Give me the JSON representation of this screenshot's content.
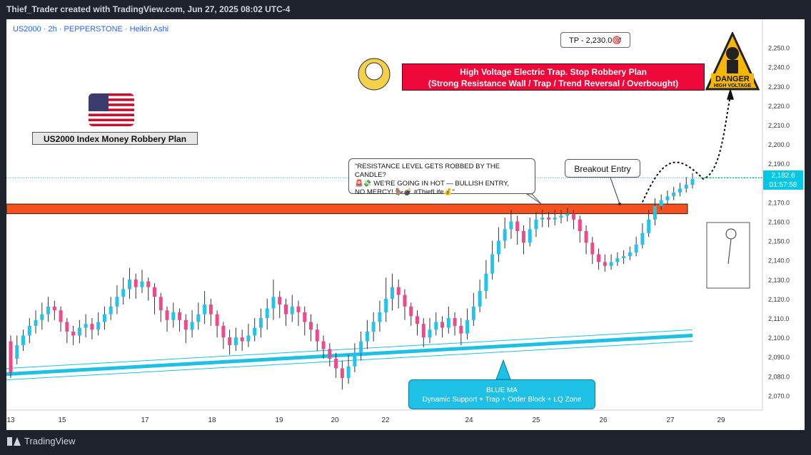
{
  "header": {
    "text": "Thief_Trader created with TradingView.com, Jun 27, 2025 08:02 UTC-4"
  },
  "symbol_line": "US2000 · 2h · PEPPERSTONE · Heikin Ashi",
  "footer": {
    "brand": "TradingView"
  },
  "annotations": {
    "red_title_1": "High Voltage Electric Trap. Stop Robbery Plan",
    "red_title_2": "(Strong Resistance Wall / Trap / Trend Reversal / Overbought)",
    "tp": "TP - 2,230.0🎯",
    "flag_title": "US2000 Index Money Robbery Plan",
    "breakout": "Breakout Entry",
    "quote_1": "\"RESISTANCE LEVEL GETS ROBBED BY THE CANDLE?",
    "quote_2": "🚨💸 WE'RE GOING IN HOT — BULLISH ENTRY,",
    "quote_3": "NO MERCY! 🦫💣 #ThiefLife💰\"",
    "blue_1": "BLUE MA",
    "blue_2": "Dynamic Support + Trap + Order Block + LQ Zone",
    "danger_1": "DANGER",
    "danger_2": "HIGH VOLTAGE"
  },
  "price_tag": {
    "price": "2,182.6",
    "time": "01:57:58"
  },
  "colors": {
    "up": "#22c4ee",
    "down": "#f0488c",
    "resistance": "#f4511e",
    "ma": "#1ec0e6",
    "redbox": "#f0083a"
  },
  "chart_data": {
    "type": "candlestick",
    "title": "US2000 · 2h · PEPPERSTONE · Heikin Ashi",
    "ylim": [
      2065,
      2255
    ],
    "y_ticks": [
      "2,250.0",
      "2,240.0",
      "2,230.0",
      "2,220.0",
      "2,210.0",
      "2,200.0",
      "2,190.0",
      "2,180.0",
      "2,170.0",
      "2,160.0",
      "2,150.0",
      "2,140.0",
      "2,130.0",
      "2,120.0",
      "2,110.0",
      "2,100.0",
      "2,090.0",
      "2,080.0",
      "2,070.0"
    ],
    "x_ticks": [
      "13",
      "15",
      "17",
      "18",
      "19",
      "20",
      "22",
      "24",
      "25",
      "26",
      "27",
      "29"
    ],
    "resistance_zone": [
      2164,
      2169
    ],
    "current_price": 2182.6,
    "target": 2230.0,
    "blue_ma": {
      "start": 2081,
      "end": 2101
    },
    "candles": [
      [
        2098,
        2082,
        2101,
        2079
      ],
      [
        2089,
        2096,
        2101,
        2086
      ],
      [
        2096,
        2101,
        2104,
        2093
      ],
      [
        2101,
        2106,
        2110,
        2097
      ],
      [
        2106,
        2109,
        2114,
        2102
      ],
      [
        2109,
        2112,
        2118,
        2104
      ],
      [
        2112,
        2116,
        2121,
        2108
      ],
      [
        2116,
        2114,
        2119,
        2109
      ],
      [
        2114,
        2108,
        2116,
        2103
      ],
      [
        2108,
        2103,
        2110,
        2097
      ],
      [
        2103,
        2101,
        2106,
        2096
      ],
      [
        2101,
        2105,
        2109,
        2097
      ],
      [
        2105,
        2107,
        2112,
        2100
      ],
      [
        2107,
        2104,
        2110,
        2099
      ],
      [
        2104,
        2108,
        2113,
        2101
      ],
      [
        2108,
        2112,
        2116,
        2104
      ],
      [
        2112,
        2116,
        2121,
        2109
      ],
      [
        2116,
        2121,
        2127,
        2112
      ],
      [
        2121,
        2125,
        2131,
        2117
      ],
      [
        2125,
        2130,
        2136,
        2120
      ],
      [
        2130,
        2126,
        2133,
        2120
      ],
      [
        2126,
        2129,
        2135,
        2123
      ],
      [
        2129,
        2126,
        2131,
        2119
      ],
      [
        2126,
        2121,
        2128,
        2112
      ],
      [
        2121,
        2114,
        2123,
        2108
      ],
      [
        2114,
        2109,
        2116,
        2103
      ],
      [
        2109,
        2113,
        2118,
        2105
      ],
      [
        2113,
        2109,
        2115,
        2103
      ],
      [
        2109,
        2104,
        2112,
        2097
      ],
      [
        2104,
        2108,
        2114,
        2100
      ],
      [
        2108,
        2112,
        2118,
        2104
      ],
      [
        2112,
        2117,
        2124,
        2107
      ],
      [
        2117,
        2112,
        2120,
        2106
      ],
      [
        2112,
        2106,
        2114,
        2100
      ],
      [
        2106,
        2100,
        2108,
        2094
      ],
      [
        2100,
        2096,
        2104,
        2091
      ],
      [
        2096,
        2100,
        2105,
        2093
      ],
      [
        2100,
        2098,
        2104,
        2093
      ],
      [
        2098,
        2101,
        2107,
        2095
      ],
      [
        2101,
        2105,
        2110,
        2098
      ],
      [
        2105,
        2110,
        2115,
        2100
      ],
      [
        2110,
        2115,
        2120,
        2104
      ],
      [
        2115,
        2121,
        2130,
        2109
      ],
      [
        2121,
        2117,
        2124,
        2110
      ],
      [
        2117,
        2112,
        2120,
        2106
      ],
      [
        2112,
        2116,
        2122,
        2108
      ],
      [
        2116,
        2113,
        2119,
        2106
      ],
      [
        2113,
        2108,
        2116,
        2101
      ],
      [
        2108,
        2104,
        2112,
        2098
      ],
      [
        2104,
        2098,
        2107,
        2093
      ],
      [
        2098,
        2094,
        2101,
        2089
      ],
      [
        2094,
        2089,
        2097,
        2085
      ],
      [
        2089,
        2084,
        2092,
        2079
      ],
      [
        2084,
        2079,
        2088,
        2073
      ],
      [
        2079,
        2085,
        2091,
        2076
      ],
      [
        2085,
        2092,
        2097,
        2082
      ],
      [
        2092,
        2098,
        2103,
        2088
      ],
      [
        2098,
        2103,
        2109,
        2094
      ],
      [
        2103,
        2108,
        2113,
        2098
      ],
      [
        2108,
        2113,
        2119,
        2103
      ],
      [
        2113,
        2120,
        2131,
        2108
      ],
      [
        2120,
        2126,
        2133,
        2114
      ],
      [
        2126,
        2122,
        2130,
        2115
      ],
      [
        2122,
        2116,
        2125,
        2109
      ],
      [
        2116,
        2111,
        2118,
        2106
      ],
      [
        2111,
        2107,
        2114,
        2101
      ],
      [
        2107,
        2100,
        2110,
        2095
      ],
      [
        2100,
        2104,
        2110,
        2097
      ],
      [
        2104,
        2108,
        2113,
        2101
      ],
      [
        2108,
        2105,
        2111,
        2100
      ],
      [
        2105,
        2110,
        2116,
        2102
      ],
      [
        2110,
        2106,
        2113,
        2101
      ],
      [
        2106,
        2102,
        2110,
        2096
      ],
      [
        2102,
        2109,
        2115,
        2099
      ],
      [
        2109,
        2116,
        2123,
        2106
      ],
      [
        2116,
        2124,
        2130,
        2113
      ],
      [
        2124,
        2133,
        2140,
        2120
      ],
      [
        2133,
        2143,
        2150,
        2130
      ],
      [
        2143,
        2150,
        2157,
        2139
      ],
      [
        2150,
        2156,
        2162,
        2146
      ],
      [
        2156,
        2160,
        2166,
        2151
      ],
      [
        2160,
        2155,
        2163,
        2148
      ],
      [
        2155,
        2149,
        2158,
        2143
      ],
      [
        2149,
        2156,
        2162,
        2147
      ],
      [
        2156,
        2161,
        2165,
        2152
      ],
      [
        2161,
        2162,
        2166,
        2157
      ],
      [
        2162,
        2161,
        2165,
        2157
      ],
      [
        2161,
        2162,
        2166,
        2158
      ],
      [
        2162,
        2163,
        2166,
        2159
      ],
      [
        2163,
        2164,
        2167,
        2160
      ],
      [
        2164,
        2161,
        2166,
        2156
      ],
      [
        2161,
        2155,
        2163,
        2149
      ],
      [
        2155,
        2149,
        2158,
        2143
      ],
      [
        2149,
        2143,
        2152,
        2138
      ],
      [
        2143,
        2139,
        2146,
        2135
      ],
      [
        2139,
        2137,
        2143,
        2134
      ],
      [
        2137,
        2139,
        2143,
        2135
      ],
      [
        2139,
        2141,
        2144,
        2137
      ],
      [
        2141,
        2142,
        2145,
        2138
      ],
      [
        2142,
        2144,
        2147,
        2140
      ],
      [
        2144,
        2148,
        2152,
        2142
      ],
      [
        2148,
        2154,
        2159,
        2146
      ],
      [
        2154,
        2161,
        2166,
        2152
      ],
      [
        2161,
        2168,
        2172,
        2158
      ],
      [
        2168,
        2171,
        2174,
        2166
      ],
      [
        2171,
        2173,
        2176,
        2169
      ],
      [
        2173,
        2175,
        2178,
        2171
      ],
      [
        2175,
        2177,
        2180,
        2173
      ],
      [
        2177,
        2179,
        2183,
        2175
      ],
      [
        2179,
        2182,
        2185,
        2177
      ]
    ]
  }
}
